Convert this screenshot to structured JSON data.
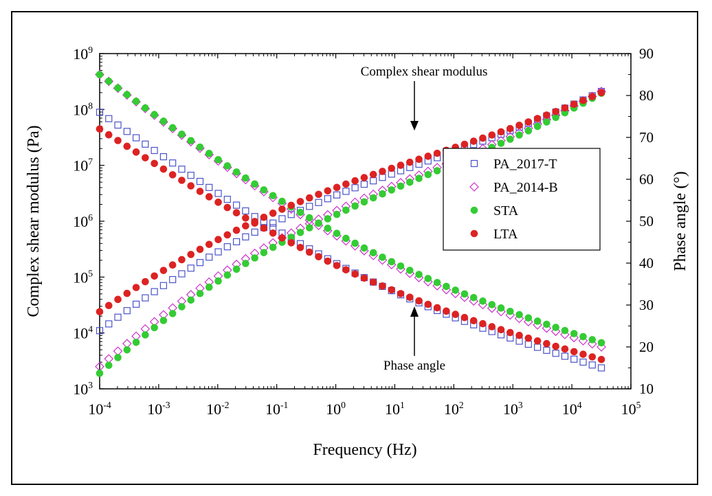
{
  "chart_data": {
    "type": "scatter",
    "xlabel": "Frequency (Hz)",
    "ylabel_left": "Complex shear modulus (Pa)",
    "ylabel_right": "Phase angle (°)",
    "x_scale": "log",
    "x_ticks": [
      "10-4",
      "10-3",
      "10-2",
      "10-1",
      "100",
      "101",
      "102",
      "103",
      "104",
      "105"
    ],
    "y_left_scale": "log",
    "y_left_ticks": [
      "103",
      "104",
      "105",
      "106",
      "107",
      "108",
      "109"
    ],
    "y_right_ticks": [
      "10",
      "20",
      "30",
      "40",
      "50",
      "60",
      "70",
      "80",
      "90"
    ],
    "xlim": [
      0.0001,
      100000
    ],
    "ylim_left": [
      1000,
      1000000000
    ],
    "ylim_right": [
      10,
      90
    ],
    "annotations": [
      "Complex shear modulus",
      "Phase angle"
    ],
    "legend_position": "right",
    "grid": false,
    "series": [
      {
        "name": "PA_2017-T",
        "marker": "open-square",
        "color": "#4a52c8",
        "modulus_start": [
          0.0001,
          11000
        ],
        "modulus_end": [
          31600,
          210000000
        ],
        "phase_start": [
          0.0001,
          76
        ],
        "phase_end": [
          31600,
          15
        ]
      },
      {
        "name": "PA_2014-B",
        "marker": "open-diamond",
        "color": "#cc33cc",
        "modulus_start": [
          0.0001,
          2500
        ],
        "modulus_end": [
          31600,
          210000000
        ],
        "phase_start": [
          0.0001,
          85
        ],
        "phase_end": [
          31600,
          20
        ]
      },
      {
        "name": "STA",
        "marker": "filled-circle",
        "color": "#33cc33",
        "modulus_start": [
          0.0001,
          1900
        ],
        "modulus_end": [
          31600,
          195000000
        ],
        "phase_start": [
          0.0001,
          85
        ],
        "phase_end": [
          31600,
          21
        ]
      },
      {
        "name": "LTA",
        "marker": "filled-circle",
        "color": "#dd2222",
        "modulus_start": [
          0.0001,
          24000
        ],
        "modulus_end": [
          31600,
          200000000
        ],
        "phase_start": [
          0.0001,
          72
        ],
        "phase_end": [
          31600,
          17
        ]
      }
    ]
  }
}
